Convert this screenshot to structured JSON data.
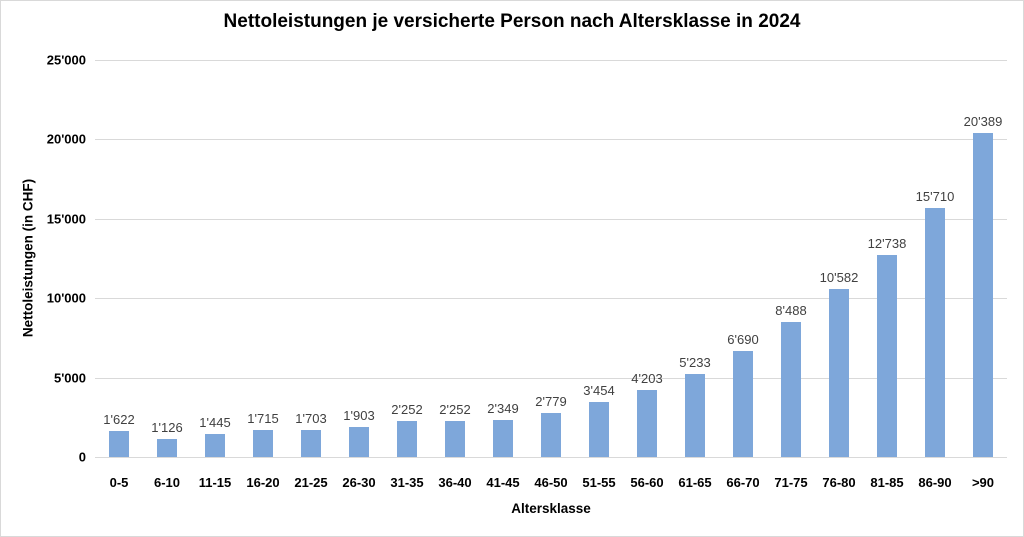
{
  "chart_data": {
    "type": "bar",
    "title": "Nettoleistungen je versicherte Person nach Altersklasse in 2024",
    "xlabel": "Altersklasse",
    "ylabel": "Nettoleistungen (in CHF)",
    "categories": [
      "0-5",
      "6-10",
      "11-15",
      "16-20",
      "21-25",
      "26-30",
      "31-35",
      "36-40",
      "41-45",
      "46-50",
      "51-55",
      "56-60",
      "61-65",
      "66-70",
      "71-75",
      "76-80",
      "81-85",
      "86-90",
      ">90"
    ],
    "values": [
      1622,
      1126,
      1445,
      1715,
      1703,
      1903,
      2252,
      2252,
      2349,
      2779,
      3454,
      4203,
      5233,
      6690,
      8488,
      10582,
      12738,
      15710,
      20389
    ],
    "value_labels": [
      "1'622",
      "1'126",
      "1'445",
      "1'715",
      "1'703",
      "1'903",
      "2'252",
      "2'252",
      "2'349",
      "2'779",
      "3'454",
      "4'203",
      "5'233",
      "6'690",
      "8'488",
      "10'582",
      "12'738",
      "15'710",
      "20'389"
    ],
    "ylim": [
      0,
      25000
    ],
    "y_ticks": [
      {
        "value": 0,
        "label": "0"
      },
      {
        "value": 5000,
        "label": "5'000"
      },
      {
        "value": 10000,
        "label": "10'000"
      },
      {
        "value": 15000,
        "label": "15'000"
      },
      {
        "value": 20000,
        "label": "20'000"
      },
      {
        "value": 25000,
        "label": "25'000"
      }
    ],
    "grid": true,
    "legend": "none",
    "colors": {
      "bar": "#7EA7DA",
      "gridline": "#D9D9D9",
      "axis_line": "#D9D9D9",
      "data_label": "#404040",
      "text": "#000000",
      "frame_border": "#D9D9D9",
      "background": "#FFFFFF"
    }
  }
}
